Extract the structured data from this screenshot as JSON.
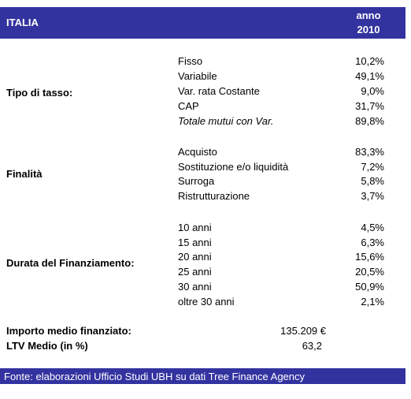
{
  "header": {
    "country": "ITALIA",
    "year_label": "anno",
    "year": "2010"
  },
  "sections": [
    {
      "label": "Tipo di tasso:",
      "rows": [
        {
          "name": "Fisso",
          "value": "10,2%"
        },
        {
          "name": "Variabile",
          "value": "49,1%"
        },
        {
          "name": "Var. rata Costante",
          "value": "9,0%"
        },
        {
          "name": "CAP",
          "value": "31,7%"
        },
        {
          "name": "Totale mutui con Var.",
          "value": "89,8%"
        }
      ]
    },
    {
      "label": "Finalità",
      "rows": [
        {
          "name": "Acquisto",
          "value": "83,3%"
        },
        {
          "name": "Sostituzione e/o liquidità",
          "value": "7,2%"
        },
        {
          "name": "Surroga",
          "value": "5,8%"
        },
        {
          "name": "Ristrutturazione",
          "value": "3,7%"
        }
      ]
    },
    {
      "label": "Durata del Finanziamento:",
      "rows": [
        {
          "name": "10 anni",
          "value": "4,5%"
        },
        {
          "name": "15 anni",
          "value": "6,3%"
        },
        {
          "name": "20 anni",
          "value": "15,6%"
        },
        {
          "name": "25 anni",
          "value": "20,5%"
        },
        {
          "name": "30 anni",
          "value": "50,9%"
        },
        {
          "name": "oltre 30 anni",
          "value": "2,1%"
        }
      ]
    }
  ],
  "summary": {
    "importo_label": "Importo medio finanziato:",
    "importo_value": "135.209 €",
    "ltv_label": "LTV Medio (in %)",
    "ltv_value": "63,2"
  },
  "footer": {
    "source": "Fonte: elaborazioni Ufficio Studi UBH su dati Tree Finance Agency"
  }
}
